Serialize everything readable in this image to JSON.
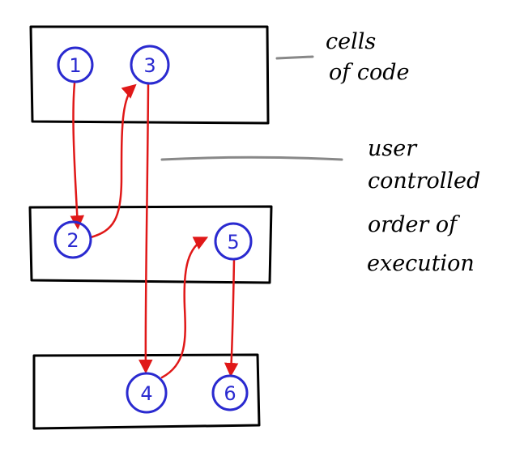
{
  "colors": {
    "box_stroke": "#000000",
    "node": "#2a2ad0",
    "arrow": "#e01818",
    "leader": "#888888",
    "annotation_text": "#000000"
  },
  "boxes": [
    {
      "name": "top-cell-box"
    },
    {
      "name": "middle-cell-box"
    },
    {
      "name": "bottom-cell-box"
    }
  ],
  "nodes": [
    {
      "label": "1",
      "box": 0
    },
    {
      "label": "3",
      "box": 0
    },
    {
      "label": "2",
      "box": 1
    },
    {
      "label": "5",
      "box": 1
    },
    {
      "label": "4",
      "box": 2
    },
    {
      "label": "6",
      "box": 2
    }
  ],
  "execution_order": [
    "1",
    "2",
    "3",
    "4",
    "5",
    "6"
  ],
  "annotations": {
    "cells": {
      "line1": "cells",
      "line2": "of code"
    },
    "order": {
      "line1": "user",
      "line2": "controlled",
      "line3": "order of",
      "line4": "execution"
    }
  }
}
